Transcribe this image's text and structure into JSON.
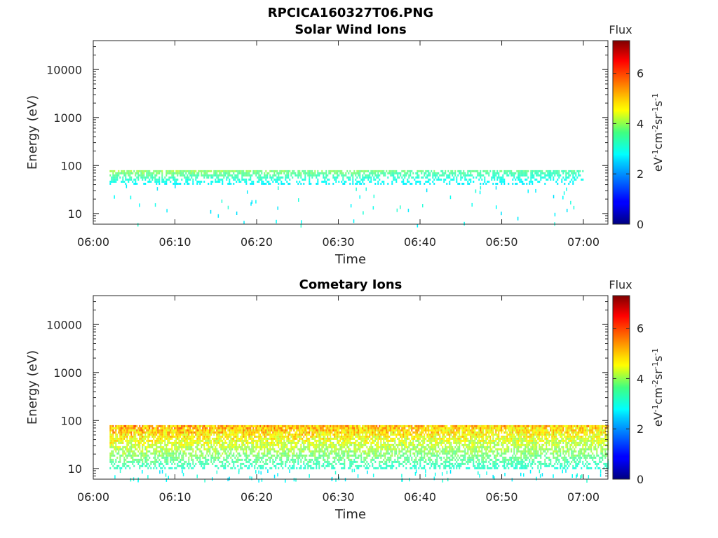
{
  "figure_title": "RPCICA160327T06.PNG",
  "chart_data": [
    {
      "type": "heatmap",
      "title": "Solar Wind Ions",
      "xlabel": "Time",
      "ylabel": "Energy (eV)",
      "x_ticks": [
        "06:00",
        "06:10",
        "06:20",
        "06:30",
        "06:40",
        "06:50",
        "07:00"
      ],
      "xlim": [
        "06:00",
        "07:03"
      ],
      "y_ticks": [
        "10",
        "100",
        "1000",
        "10000"
      ],
      "ylim": [
        6,
        40000
      ],
      "y_scale": "log",
      "data_time_range": [
        "06:02",
        "07:00"
      ],
      "band_energy": [
        40,
        80
      ],
      "band_flux": [
        2.5,
        4.2
      ],
      "colorbar": {
        "title": "Flux",
        "label": "eV-1cm-2sr-1s-1",
        "label_parts": [
          {
            "t": "eV",
            "sup": false
          },
          {
            "t": "-1",
            "sup": true
          },
          {
            "t": "cm",
            "sup": false
          },
          {
            "t": "-2",
            "sup": true
          },
          {
            "t": "sr",
            "sup": false
          },
          {
            "t": "-1",
            "sup": true
          },
          {
            "t": "s",
            "sup": false
          },
          {
            "t": "-1",
            "sup": true
          }
        ],
        "range": [
          0,
          7.3
        ],
        "ticks": [
          "0",
          "2",
          "4",
          "6"
        ],
        "colormap": "jet"
      }
    },
    {
      "type": "heatmap",
      "title": "Cometary Ions",
      "xlabel": "Time",
      "ylabel": "Energy (eV)",
      "x_ticks": [
        "06:00",
        "06:10",
        "06:20",
        "06:30",
        "06:40",
        "06:50",
        "07:00"
      ],
      "xlim": [
        "06:00",
        "07:03"
      ],
      "y_ticks": [
        "10",
        "100",
        "1000",
        "10000"
      ],
      "ylim": [
        6,
        40000
      ],
      "y_scale": "log",
      "data_time_range": [
        "06:02",
        "07:03"
      ],
      "band_energy": [
        10,
        80
      ],
      "band_flux": [
        2.5,
        6.0
      ],
      "colorbar": {
        "title": "Flux",
        "label": "eV-1cm-2sr-1s-1",
        "label_parts": [
          {
            "t": "eV",
            "sup": false
          },
          {
            "t": "-1",
            "sup": true
          },
          {
            "t": "cm",
            "sup": false
          },
          {
            "t": "-2",
            "sup": true
          },
          {
            "t": "sr",
            "sup": false
          },
          {
            "t": "-1",
            "sup": true
          },
          {
            "t": "s",
            "sup": false
          },
          {
            "t": "-1",
            "sup": true
          }
        ],
        "range": [
          0,
          7.3
        ],
        "ticks": [
          "0",
          "2",
          "4",
          "6"
        ],
        "colormap": "jet"
      }
    }
  ]
}
